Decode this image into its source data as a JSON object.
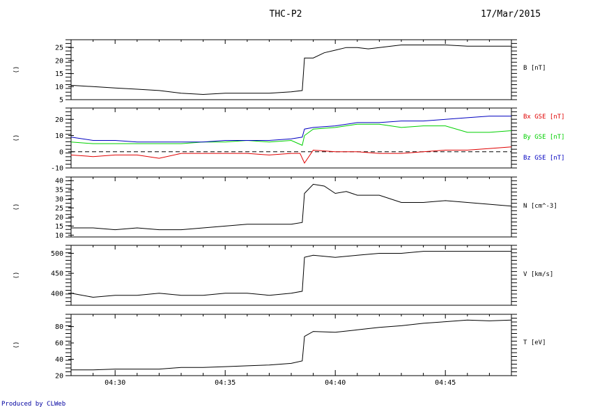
{
  "header": {
    "title": "THC-P2",
    "date": "17/Mar/2015"
  },
  "footer": {
    "credit": "Produced by CLWeb"
  },
  "colors": {
    "axis": "#000000",
    "black_series": "#000000",
    "bx": "#e00000",
    "by": "#00d000",
    "bz": "#0000c0",
    "credit": "#0000a0"
  },
  "x_axis": {
    "range": [
      "04:28:00",
      "04:48:00"
    ],
    "tick_labels": [
      "04:30",
      "04:35",
      "04:40",
      "04:45"
    ],
    "tick_values": [
      "04:30",
      "04:35",
      "04:40",
      "04:45"
    ]
  },
  "chart_data": [
    {
      "type": "line",
      "left_label": "()",
      "ylim": [
        5,
        28
      ],
      "tick_labels": [
        "5",
        "10",
        "15",
        "20",
        "25"
      ],
      "tick_values": [
        5,
        10,
        15,
        20,
        25
      ],
      "series": [
        {
          "name": "B [nT]",
          "color": "#000000",
          "x": [
            "04:28",
            "04:29",
            "04:30",
            "04:31",
            "04:32",
            "04:33",
            "04:34",
            "04:35",
            "04:36",
            "04:37",
            "04:38",
            "04:38.5",
            "04:38.6",
            "04:39",
            "04:39.5",
            "04:40",
            "04:40.5",
            "04:41",
            "04:41.5",
            "04:42",
            "04:43",
            "04:44",
            "04:45",
            "04:46",
            "04:47",
            "04:48"
          ],
          "y": [
            10.5,
            10,
            9.5,
            9,
            8.5,
            7.5,
            7,
            7.5,
            7.5,
            7.5,
            8,
            8.5,
            21,
            21,
            23,
            24,
            25,
            25,
            24.5,
            25,
            26,
            26,
            26,
            25.5,
            25.5,
            25.5
          ]
        }
      ]
    },
    {
      "type": "line",
      "left_label": "()",
      "ylim": [
        -10,
        27
      ],
      "tick_labels": [
        "-10",
        "0",
        "10",
        "20"
      ],
      "tick_values": [
        -10,
        0,
        10,
        20
      ],
      "zero_line": true,
      "series": [
        {
          "name": "Bx GSE [nT]",
          "color": "#e00000",
          "x": [
            "04:28",
            "04:29",
            "04:30",
            "04:31",
            "04:32",
            "04:33",
            "04:34",
            "04:35",
            "04:36",
            "04:37",
            "04:38",
            "04:38.4",
            "04:38.6",
            "04:39",
            "04:40",
            "04:41",
            "04:42",
            "04:43",
            "04:44",
            "04:45",
            "04:46",
            "04:47",
            "04:48"
          ],
          "y": [
            -2,
            -3,
            -2,
            -2,
            -4,
            -1,
            -1,
            -1,
            -1,
            -2,
            -1,
            -1,
            -7,
            1,
            0,
            0,
            -1,
            -1,
            0,
            1,
            1,
            2,
            3
          ]
        },
        {
          "name": "By GSE [nT]",
          "color": "#00d000",
          "x": [
            "04:28",
            "04:29",
            "04:30",
            "04:31",
            "04:32",
            "04:33",
            "04:34",
            "04:35",
            "04:36",
            "04:37",
            "04:38",
            "04:38.5",
            "04:38.6",
            "04:39",
            "04:40",
            "04:41",
            "04:42",
            "04:43",
            "04:44",
            "04:45",
            "04:46",
            "04:47",
            "04:48"
          ],
          "y": [
            6,
            5,
            5,
            5,
            5,
            5,
            6,
            6,
            7,
            6,
            7,
            4,
            10,
            14,
            15,
            17,
            17,
            15,
            16,
            16,
            12,
            12,
            13
          ]
        },
        {
          "name": "Bz GSE [nT]",
          "color": "#0000c0",
          "x": [
            "04:28",
            "04:29",
            "04:30",
            "04:31",
            "04:32",
            "04:33",
            "04:34",
            "04:35",
            "04:36",
            "04:37",
            "04:38",
            "04:38.5",
            "04:38.6",
            "04:39",
            "04:40",
            "04:41",
            "04:42",
            "04:43",
            "04:44",
            "04:45",
            "04:46",
            "04:47",
            "04:48"
          ],
          "y": [
            9,
            7,
            7,
            6,
            6,
            6,
            6,
            7,
            7,
            7,
            8,
            9,
            14,
            15,
            16,
            18,
            18,
            19,
            19,
            20,
            21,
            22,
            22
          ]
        }
      ]
    },
    {
      "type": "line",
      "left_label": "()",
      "ylim": [
        9,
        42
      ],
      "tick_labels": [
        "10",
        "15",
        "20",
        "25",
        "30",
        "35",
        "40"
      ],
      "tick_values": [
        10,
        15,
        20,
        25,
        30,
        35,
        40
      ],
      "series": [
        {
          "name": "N [cm^-3]",
          "color": "#000000",
          "x": [
            "04:28",
            "04:29",
            "04:30",
            "04:31",
            "04:32",
            "04:33",
            "04:34",
            "04:35",
            "04:36",
            "04:37",
            "04:38",
            "04:38.5",
            "04:38.6",
            "04:39",
            "04:39.5",
            "04:40",
            "04:40.5",
            "04:41",
            "04:42",
            "04:43",
            "04:44",
            "04:45",
            "04:46",
            "04:47",
            "04:48"
          ],
          "y": [
            14,
            14,
            13,
            14,
            13,
            13,
            14,
            15,
            16,
            16,
            16,
            17,
            33,
            38,
            37,
            33,
            34,
            32,
            32,
            28,
            28,
            29,
            28,
            27,
            26
          ]
        }
      ]
    },
    {
      "type": "line",
      "left_label": "()",
      "ylim": [
        370,
        520
      ],
      "tick_labels": [
        "400",
        "450",
        "500"
      ],
      "tick_values": [
        400,
        450,
        500
      ],
      "series": [
        {
          "name": "V [km/s]",
          "color": "#000000",
          "x": [
            "04:28",
            "04:29",
            "04:30",
            "04:31",
            "04:32",
            "04:33",
            "04:34",
            "04:35",
            "04:36",
            "04:37",
            "04:38",
            "04:38.5",
            "04:38.6",
            "04:39",
            "04:40",
            "04:41",
            "04:42",
            "04:43",
            "04:44",
            "04:45",
            "04:46",
            "04:47",
            "04:48"
          ],
          "y": [
            400,
            390,
            395,
            395,
            400,
            395,
            395,
            400,
            400,
            395,
            400,
            405,
            490,
            495,
            490,
            495,
            500,
            500,
            505,
            505,
            505,
            505,
            505
          ]
        }
      ]
    },
    {
      "type": "line",
      "left_label": "()",
      "ylim": [
        20,
        95
      ],
      "tick_labels": [
        "20",
        "40",
        "60",
        "80"
      ],
      "tick_values": [
        20,
        40,
        60,
        80
      ],
      "series": [
        {
          "name": "T [eV]",
          "color": "#000000",
          "x": [
            "04:28",
            "04:29",
            "04:30",
            "04:31",
            "04:32",
            "04:33",
            "04:34",
            "04:35",
            "04:36",
            "04:37",
            "04:38",
            "04:38.5",
            "04:38.6",
            "04:39",
            "04:40",
            "04:41",
            "04:42",
            "04:43",
            "04:44",
            "04:45",
            "04:46",
            "04:47",
            "04:48"
          ],
          "y": [
            27,
            27,
            28,
            28,
            28,
            30,
            30,
            31,
            32,
            33,
            35,
            38,
            68,
            74,
            73,
            76,
            79,
            81,
            84,
            86,
            88,
            87,
            88
          ]
        }
      ]
    }
  ]
}
